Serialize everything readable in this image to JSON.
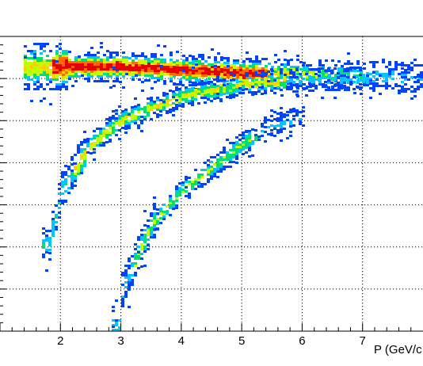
{
  "chart_data": {
    "type": "heatmap",
    "title": "",
    "xlabel": "P (GeV/c",
    "ylabel": "",
    "x_ticks": [
      "2",
      "3",
      "4",
      "5",
      "6",
      "7"
    ],
    "xlim": [
      1.0,
      8.0
    ],
    "ylim": [
      0.0,
      1.0
    ],
    "grid": true,
    "colorscale": [
      "#0044ff",
      "#00c8ff",
      "#00e070",
      "#c0ff00",
      "#ffd000",
      "#ff6a00",
      "#e60000"
    ],
    "bands": [
      {
        "name": "",
        "points": [
          [
            1.5,
            0.9
          ],
          [
            2.0,
            0.9
          ],
          [
            3.0,
            0.9
          ],
          [
            4.0,
            0.89
          ],
          [
            5.0,
            0.88
          ],
          [
            6.0,
            0.875
          ],
          [
            7.0,
            0.87
          ],
          [
            8.0,
            0.865
          ]
        ],
        "peak_intensity": 1.0
      },
      {
        "name": "",
        "points": [
          [
            1.8,
            0.3
          ],
          [
            2.0,
            0.48
          ],
          [
            2.5,
            0.64
          ],
          [
            3.0,
            0.72
          ],
          [
            4.0,
            0.8
          ],
          [
            5.0,
            0.84
          ],
          [
            6.0,
            0.855
          ],
          [
            7.0,
            0.86
          ]
        ],
        "peak_intensity": 0.55
      },
      {
        "name": "",
        "points": [
          [
            2.95,
            0.02
          ],
          [
            3.0,
            0.14
          ],
          [
            3.5,
            0.37
          ],
          [
            4.0,
            0.48
          ],
          [
            4.5,
            0.56
          ],
          [
            5.0,
            0.64
          ],
          [
            5.5,
            0.7
          ],
          [
            6.0,
            0.73
          ]
        ],
        "peak_intensity": 0.45
      }
    ]
  }
}
